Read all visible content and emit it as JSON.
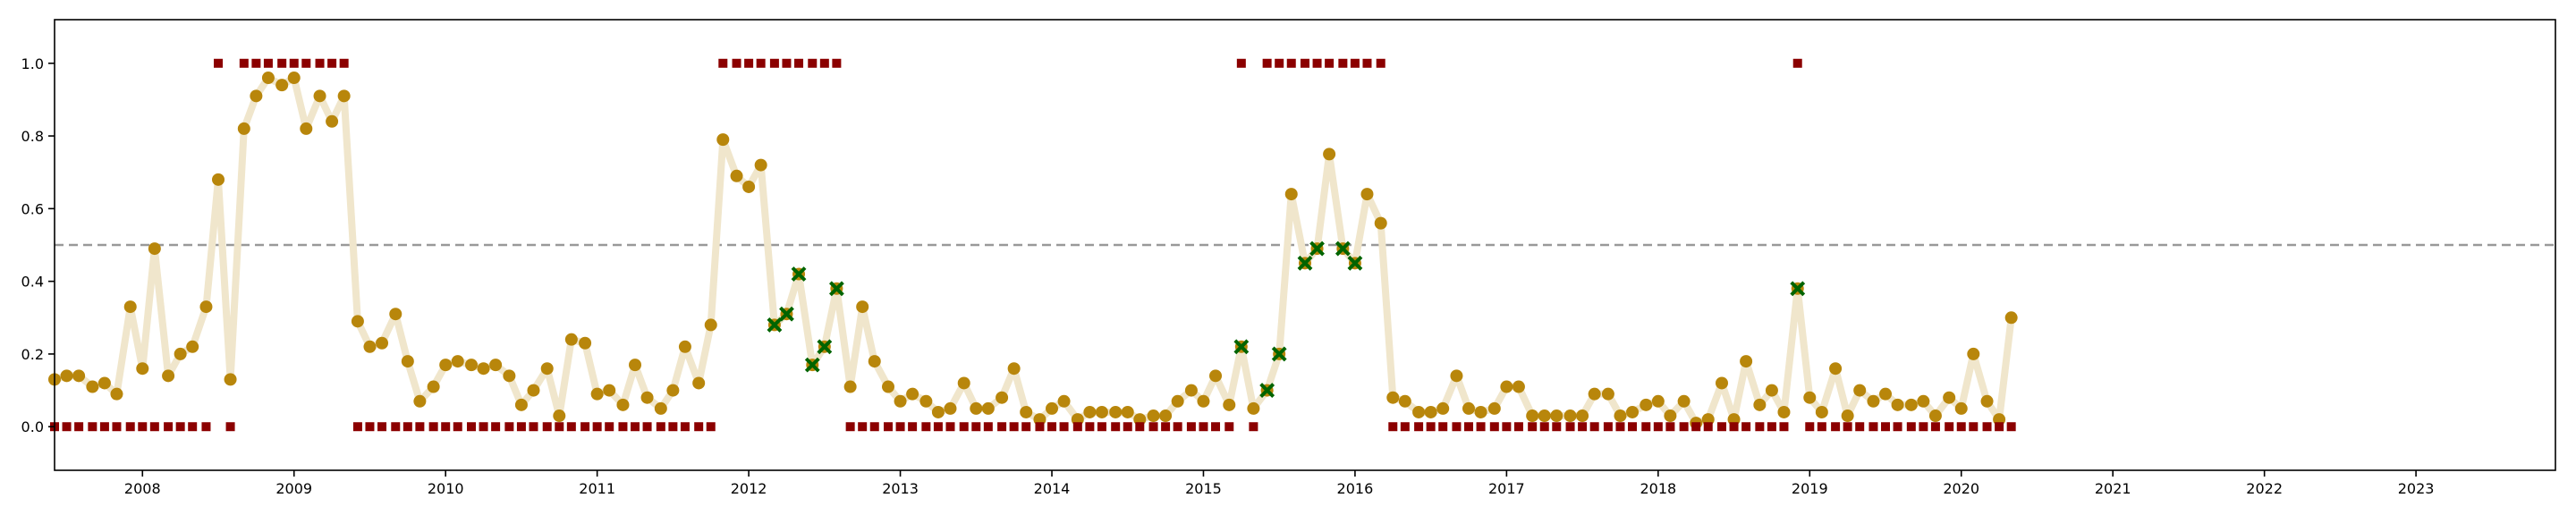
{
  "chart_data": {
    "type": "line",
    "title": "",
    "xlabel": "",
    "ylabel": "",
    "xlim": [
      2007.42,
      2023.92
    ],
    "ylim": [
      -0.12,
      1.12
    ],
    "x_ticks": [
      2008,
      2009,
      2010,
      2011,
      2012,
      2013,
      2014,
      2015,
      2016,
      2017,
      2018,
      2019,
      2020,
      2021,
      2022,
      2023
    ],
    "y_ticks": [
      0.0,
      0.2,
      0.4,
      0.6,
      0.8,
      1.0
    ],
    "y_tick_labels": [
      "0.0",
      "0.2",
      "0.4",
      "0.6",
      "0.8",
      "1.0"
    ],
    "threshold": 0.5,
    "grid": false,
    "legend": null,
    "colors": {
      "line": "#f0e6cc",
      "score_marker": "#b8860b",
      "flagged_marker": "#006400",
      "label_marker": "#8b0000",
      "threshold_line": "#999999",
      "axes": "#000000"
    },
    "series": [
      {
        "marker": "circle",
        "x": [
          2007.42,
          2007.5,
          2007.58,
          2007.67,
          2007.75,
          2007.83,
          2007.92,
          2008.0,
          2008.08,
          2008.17,
          2008.25,
          2008.33,
          2008.42,
          2008.5,
          2008.58,
          2008.67,
          2008.75,
          2008.83,
          2008.92,
          2009.0,
          2009.08,
          2009.17,
          2009.25,
          2009.33,
          2009.42,
          2009.5,
          2009.58,
          2009.67,
          2009.75,
          2009.83,
          2009.92,
          2010.0,
          2010.08,
          2010.17,
          2010.25,
          2010.33,
          2010.42,
          2010.5,
          2010.58,
          2010.67,
          2010.75,
          2010.83,
          2010.92,
          2011.0,
          2011.08,
          2011.17,
          2011.25,
          2011.33,
          2011.42,
          2011.5,
          2011.58,
          2011.67,
          2011.75,
          2011.83,
          2011.92,
          2012.0,
          2012.08,
          2012.17,
          2012.25,
          2012.33,
          2012.42,
          2012.5,
          2012.58,
          2012.67,
          2012.75,
          2012.83,
          2012.92,
          2013.0,
          2013.08,
          2013.17,
          2013.25,
          2013.33,
          2013.42,
          2013.5,
          2013.58,
          2013.67,
          2013.75,
          2013.83,
          2013.92,
          2014.0,
          2014.08,
          2014.17,
          2014.25,
          2014.33,
          2014.42,
          2014.5,
          2014.58,
          2014.67,
          2014.75,
          2014.83,
          2014.92,
          2015.0,
          2015.08,
          2015.17,
          2015.25,
          2015.33,
          2015.42,
          2015.5,
          2015.58,
          2015.67,
          2015.75,
          2015.83,
          2015.92,
          2016.0,
          2016.08,
          2016.17,
          2016.25,
          2016.33,
          2016.42,
          2016.5,
          2016.58,
          2016.67,
          2016.75,
          2016.83,
          2016.92,
          2017.0,
          2017.08,
          2017.17,
          2017.25,
          2017.33,
          2017.42,
          2017.5,
          2017.58,
          2017.67,
          2017.75,
          2017.83,
          2017.92,
          2018.0,
          2018.08,
          2018.17,
          2018.25,
          2018.33,
          2018.42,
          2018.5,
          2018.58,
          2018.67,
          2018.75,
          2018.83,
          2018.92,
          2019.0,
          2019.08,
          2019.17,
          2019.25,
          2019.33,
          2019.42,
          2019.5,
          2019.58,
          2019.67,
          2019.75,
          2019.83,
          2019.92,
          2020.0,
          2020.08,
          2020.17,
          2020.25,
          2020.33
        ],
        "y": [
          0.13,
          0.14,
          0.14,
          0.11,
          0.12,
          0.09,
          0.33,
          0.16,
          0.49,
          0.14,
          0.2,
          0.22,
          0.33,
          0.68,
          0.13,
          0.82,
          0.91,
          0.96,
          0.94,
          0.96,
          0.82,
          0.91,
          0.84,
          0.91,
          0.29,
          0.22,
          0.23,
          0.31,
          0.18,
          0.07,
          0.11,
          0.17,
          0.18,
          0.17,
          0.16,
          0.17,
          0.14,
          0.06,
          0.1,
          0.16,
          0.03,
          0.24,
          0.23,
          0.09,
          0.1,
          0.06,
          0.17,
          0.08,
          0.05,
          0.1,
          0.22,
          0.12,
          0.28,
          0.79,
          0.69,
          0.66,
          0.72,
          0.28,
          0.31,
          0.42,
          0.17,
          0.22,
          0.38,
          0.11,
          0.33,
          0.18,
          0.11,
          0.07,
          0.09,
          0.07,
          0.04,
          0.05,
          0.12,
          0.05,
          0.05,
          0.08,
          0.16,
          0.04,
          0.02,
          0.05,
          0.07,
          0.02,
          0.04,
          0.04,
          0.04,
          0.04,
          0.02,
          0.03,
          0.03,
          0.07,
          0.1,
          0.07,
          0.14,
          0.06,
          0.22,
          0.05,
          0.1,
          0.2,
          0.64,
          0.45,
          0.49,
          0.75,
          0.49,
          0.45,
          0.64,
          0.56,
          0.08,
          0.07,
          0.04,
          0.04,
          0.05,
          0.14,
          0.05,
          0.04,
          0.05,
          0.11,
          0.11,
          0.03,
          0.03,
          0.03,
          0.03,
          0.03,
          0.09,
          0.09,
          0.03,
          0.04,
          0.06,
          0.07,
          0.03,
          0.07,
          0.01,
          0.02,
          0.12,
          0.02,
          0.18,
          0.06,
          0.1,
          0.04,
          0.38,
          0.08,
          0.04,
          0.16,
          0.03,
          0.1,
          0.07,
          0.09,
          0.06,
          0.06,
          0.07,
          0.03,
          0.08,
          0.05,
          0.2,
          0.07,
          0.02,
          0.3
        ]
      },
      {
        "marker": "x",
        "x": [
          2012.17,
          2012.25,
          2012.33,
          2012.42,
          2012.5,
          2012.58,
          2015.25,
          2015.42,
          2015.5,
          2015.67,
          2015.75,
          2015.92,
          2016.0,
          2018.92
        ],
        "y": [
          0.28,
          0.31,
          0.42,
          0.17,
          0.22,
          0.38,
          0.22,
          0.1,
          0.2,
          0.45,
          0.49,
          0.49,
          0.45,
          0.38
        ]
      },
      {
        "marker": "square",
        "x": [
          2008.5,
          2008.67,
          2008.75,
          2008.83,
          2008.92,
          2009.0,
          2009.08,
          2009.17,
          2009.25,
          2009.33,
          2011.83,
          2011.92,
          2012.0,
          2012.08,
          2012.17,
          2012.25,
          2012.33,
          2012.42,
          2012.5,
          2012.58,
          2015.25,
          2015.42,
          2015.5,
          2015.58,
          2015.67,
          2015.75,
          2015.83,
          2015.92,
          2016.0,
          2016.08,
          2016.17,
          2018.92
        ],
        "y": [
          1,
          1,
          1,
          1,
          1,
          1,
          1,
          1,
          1,
          1,
          1,
          1,
          1,
          1,
          1,
          1,
          1,
          1,
          1,
          1,
          1,
          1,
          1,
          1,
          1,
          1,
          1,
          1,
          1,
          1,
          1,
          1
        ]
      },
      {
        "marker": "square",
        "x": [
          2007.42,
          2007.5,
          2007.58,
          2007.67,
          2007.75,
          2007.83,
          2007.92,
          2008.0,
          2008.08,
          2008.17,
          2008.25,
          2008.33,
          2008.42,
          2008.58,
          2009.42,
          2009.5,
          2009.58,
          2009.67,
          2009.75,
          2009.83,
          2009.92,
          2010.0,
          2010.08,
          2010.17,
          2010.25,
          2010.33,
          2010.42,
          2010.5,
          2010.58,
          2010.67,
          2010.75,
          2010.83,
          2010.92,
          2011.0,
          2011.08,
          2011.17,
          2011.25,
          2011.33,
          2011.42,
          2011.5,
          2011.58,
          2011.67,
          2011.75,
          2012.67,
          2012.75,
          2012.83,
          2012.92,
          2013.0,
          2013.08,
          2013.17,
          2013.25,
          2013.33,
          2013.42,
          2013.5,
          2013.58,
          2013.67,
          2013.75,
          2013.83,
          2013.92,
          2014.0,
          2014.08,
          2014.17,
          2014.25,
          2014.33,
          2014.42,
          2014.5,
          2014.58,
          2014.67,
          2014.75,
          2014.83,
          2014.92,
          2015.0,
          2015.08,
          2015.17,
          2015.33,
          2016.25,
          2016.33,
          2016.42,
          2016.5,
          2016.58,
          2016.67,
          2016.75,
          2016.83,
          2016.92,
          2017.0,
          2017.08,
          2017.17,
          2017.25,
          2017.33,
          2017.42,
          2017.5,
          2017.58,
          2017.67,
          2017.75,
          2017.83,
          2017.92,
          2018.0,
          2018.08,
          2018.17,
          2018.25,
          2018.33,
          2018.42,
          2018.5,
          2018.58,
          2018.67,
          2018.75,
          2018.83,
          2019.0,
          2019.08,
          2019.17,
          2019.25,
          2019.33,
          2019.42,
          2019.5,
          2019.58,
          2019.67,
          2019.75,
          2019.83,
          2019.92,
          2020.0,
          2020.08,
          2020.17,
          2020.25,
          2020.33
        ],
        "y": [
          0,
          0,
          0,
          0,
          0,
          0,
          0,
          0,
          0,
          0,
          0,
          0,
          0,
          0,
          0,
          0,
          0,
          0,
          0,
          0,
          0,
          0,
          0,
          0,
          0,
          0,
          0,
          0,
          0,
          0,
          0,
          0,
          0,
          0,
          0,
          0,
          0,
          0,
          0,
          0,
          0,
          0,
          0,
          0,
          0,
          0,
          0,
          0,
          0,
          0,
          0,
          0,
          0,
          0,
          0,
          0,
          0,
          0,
          0,
          0,
          0,
          0,
          0,
          0,
          0,
          0,
          0,
          0,
          0,
          0,
          0,
          0,
          0,
          0,
          0,
          0,
          0,
          0,
          0,
          0,
          0,
          0,
          0,
          0,
          0,
          0,
          0,
          0,
          0,
          0,
          0,
          0,
          0,
          0,
          0,
          0,
          0,
          0,
          0,
          0,
          0,
          0,
          0,
          0,
          0,
          0,
          0,
          0,
          0,
          0,
          0,
          0,
          0,
          0,
          0,
          0,
          0,
          0,
          0,
          0,
          0,
          0,
          0,
          0
        ]
      }
    ]
  }
}
